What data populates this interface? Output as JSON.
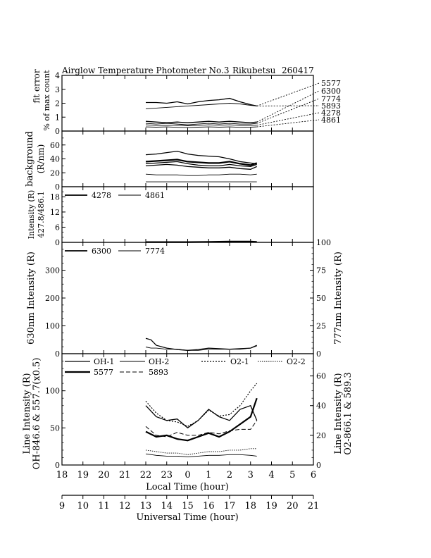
{
  "chart_data": {
    "type": "line",
    "title": "Airglow Temperature Photometer No.3",
    "station": "Rikubetsu",
    "date_code": "260417",
    "xlabel_local": "Local Time (hour)",
    "xlabel_ut": "Universal Time (hour)",
    "local_tick_labels": [
      "18",
      "19",
      "20",
      "21",
      "22",
      "23",
      "0",
      "1",
      "2",
      "3",
      "4",
      "5",
      "6"
    ],
    "ut_tick_labels": [
      "9",
      "10",
      "11",
      "12",
      "13",
      "14",
      "15",
      "16",
      "17",
      "18",
      "19",
      "20",
      "21"
    ],
    "xlim_ut": [
      9,
      21
    ],
    "panels": [
      {
        "id": "fit_error",
        "ylabel": [
          "fit error",
          "% of max count"
        ],
        "ylim": [
          0,
          4
        ],
        "yticks": [
          "0",
          "1",
          "2",
          "3",
          "4"
        ],
        "legend": [
          "5577",
          "6300",
          "7774",
          "5893",
          "4278",
          "4861"
        ],
        "x": [
          13.0,
          13.5,
          14.0,
          14.5,
          15.0,
          15.5,
          16.0,
          16.5,
          17.0,
          17.5,
          18.0,
          18.3
        ],
        "series": [
          {
            "name": "5577",
            "values": [
              2.05,
              2.05,
              2.0,
              2.1,
              1.95,
              2.1,
              2.2,
              2.25,
              2.35,
              2.1,
              1.9,
              1.8
            ]
          },
          {
            "name": "5893",
            "values": [
              1.6,
              1.65,
              1.7,
              1.75,
              1.8,
              1.85,
              1.9,
              1.95,
              2.0,
              1.95,
              1.85,
              1.8
            ]
          },
          {
            "name": "6300",
            "values": [
              0.7,
              0.65,
              0.6,
              0.65,
              0.6,
              0.65,
              0.7,
              0.65,
              0.7,
              0.65,
              0.6,
              0.65
            ]
          },
          {
            "name": "7774",
            "values": [
              0.55,
              0.5,
              0.55,
              0.5,
              0.45,
              0.5,
              0.55,
              0.5,
              0.55,
              0.5,
              0.5,
              0.55
            ]
          },
          {
            "name": "4278",
            "values": [
              0.45,
              0.4,
              0.4,
              0.42,
              0.38,
              0.4,
              0.45,
              0.42,
              0.45,
              0.4,
              0.4,
              0.42
            ]
          },
          {
            "name": "4861",
            "values": [
              0.3,
              0.28,
              0.3,
              0.27,
              0.25,
              0.28,
              0.3,
              0.28,
              0.3,
              0.27,
              0.28,
              0.3
            ]
          }
        ]
      },
      {
        "id": "background",
        "ylabel": [
          "background",
          "(R/nm)"
        ],
        "ylim": [
          0,
          80
        ],
        "yticks": [
          "0",
          "20",
          "40",
          "60"
        ],
        "x": [
          13.0,
          13.5,
          14.0,
          14.5,
          15.0,
          15.5,
          16.0,
          16.5,
          17.0,
          17.5,
          18.0,
          18.3
        ],
        "series": [
          {
            "name": "bg1",
            "values": [
              46,
              47,
              49,
              51,
              47,
              45,
              44,
              43,
              40,
              36,
              34,
              33
            ]
          },
          {
            "name": "bg2",
            "values": [
              36,
              37,
              38,
              39,
              36,
              35,
              34,
              34,
              36,
              33,
              31,
              34
            ]
          },
          {
            "name": "bg3",
            "values": [
              33,
              34,
              35,
              36,
              33,
              31,
              30,
              30,
              32,
              30,
              29,
              32
            ]
          },
          {
            "name": "bg4",
            "values": [
              30,
              31,
              32,
              31,
              29,
              28,
              27,
              27,
              28,
              26,
              25,
              29
            ]
          },
          {
            "name": "bg5",
            "values": [
              18,
              17,
              17,
              17,
              16,
              16,
              17,
              17,
              18,
              18,
              17,
              18
            ]
          },
          {
            "name": "bg6",
            "values": [
              7,
              7,
              7,
              7,
              7,
              7,
              7,
              7,
              7,
              7,
              7,
              7
            ]
          }
        ]
      },
      {
        "id": "blue_lines",
        "ylabel": [
          "Intensity (R)",
          "427.8/486.1"
        ],
        "ylim": [
          0,
          22
        ],
        "yticks": [
          "0",
          "6",
          "12",
          "18"
        ],
        "legend": [
          "4278",
          "4861"
        ],
        "x": [
          13.0,
          14.0,
          15.0,
          16.0,
          17.0,
          18.0,
          18.3
        ],
        "series": [
          {
            "name": "4278",
            "values": [
              0.1,
              0.1,
              0.1,
              0.2,
              0.3,
              0.3,
              0.2
            ]
          },
          {
            "name": "4861",
            "values": [
              0.05,
              0.05,
              0.05,
              0.1,
              0.15,
              0.2,
              0.1
            ]
          }
        ]
      },
      {
        "id": "oxygen_lines",
        "ylabel_left": "630nm Intensity (R)",
        "ylabel_right": "777nm Intensity (R)",
        "ylim_left": [
          0,
          400
        ],
        "ylim_right": [
          0,
          100
        ],
        "yticks_left": [
          "0",
          "100",
          "200",
          "300"
        ],
        "yticks_right": [
          "0",
          "25",
          "50",
          "75",
          "100"
        ],
        "legend": [
          "6300",
          "7774"
        ],
        "x": [
          13.0,
          13.25,
          13.5,
          14.0,
          14.5,
          15.0,
          15.5,
          16.0,
          16.5,
          17.0,
          17.5,
          18.0,
          18.3
        ],
        "series": [
          {
            "name": "6300",
            "axis": "left",
            "values": [
              55,
              50,
              30,
              20,
              15,
              12,
              15,
              20,
              18,
              16,
              18,
              20,
              30
            ]
          },
          {
            "name": "7774",
            "axis": "right",
            "values": [
              6,
              5,
              5,
              4,
              4,
              3,
              3,
              4,
              4,
              4,
              4,
              5,
              7
            ]
          }
        ]
      },
      {
        "id": "oh_o2_lines",
        "ylabel_left": [
          "Line Intensity (R)",
          "OH-846.6 & 557.7(x0.5)"
        ],
        "ylabel_right": [
          "Line Intensity (R)",
          "O2-866.1 & 589.3"
        ],
        "ylim_left": [
          0,
          150
        ],
        "ylim_right": [
          0,
          75
        ],
        "yticks_left": [
          "0",
          "50",
          "100"
        ],
        "yticks_right": [
          "0",
          "20",
          "40",
          "60"
        ],
        "legend": [
          "OH-1",
          "OH-2",
          "O2-1",
          "O2-2",
          "5577",
          "5893"
        ],
        "x": [
          13.0,
          13.5,
          14.0,
          14.5,
          15.0,
          15.5,
          16.0,
          16.5,
          17.0,
          17.5,
          18.0,
          18.3
        ],
        "series": [
          {
            "name": "OH-1",
            "axis": "left",
            "values": [
              80,
              65,
              60,
              62,
              50,
              60,
              75,
              65,
              60,
              75,
              80,
              60
            ]
          },
          {
            "name": "OH-2",
            "axis": "left",
            "values": [
              15,
              13,
              12,
              12,
              11,
              12,
              13,
              13,
              14,
              14,
              13,
              12
            ]
          },
          {
            "name": "O2-1",
            "axis": "right",
            "values": [
              43,
              35,
              30,
              29,
              26,
              30,
              37,
              33,
              34,
              40,
              50,
              55
            ]
          },
          {
            "name": "O2-2",
            "axis": "right",
            "values": [
              10,
              9,
              8,
              8,
              7,
              8,
              9,
              9,
              10,
              10,
              11,
              11
            ]
          },
          {
            "name": "5577",
            "axis": "left",
            "values": [
              45,
              38,
              40,
              35,
              33,
              38,
              43,
              38,
              45,
              55,
              65,
              90
            ]
          },
          {
            "name": "5893",
            "axis": "right",
            "values": [
              26,
              20,
              19,
              22,
              20,
              20,
              22,
              21,
              23,
              24,
              24,
              30
            ]
          }
        ]
      }
    ]
  }
}
